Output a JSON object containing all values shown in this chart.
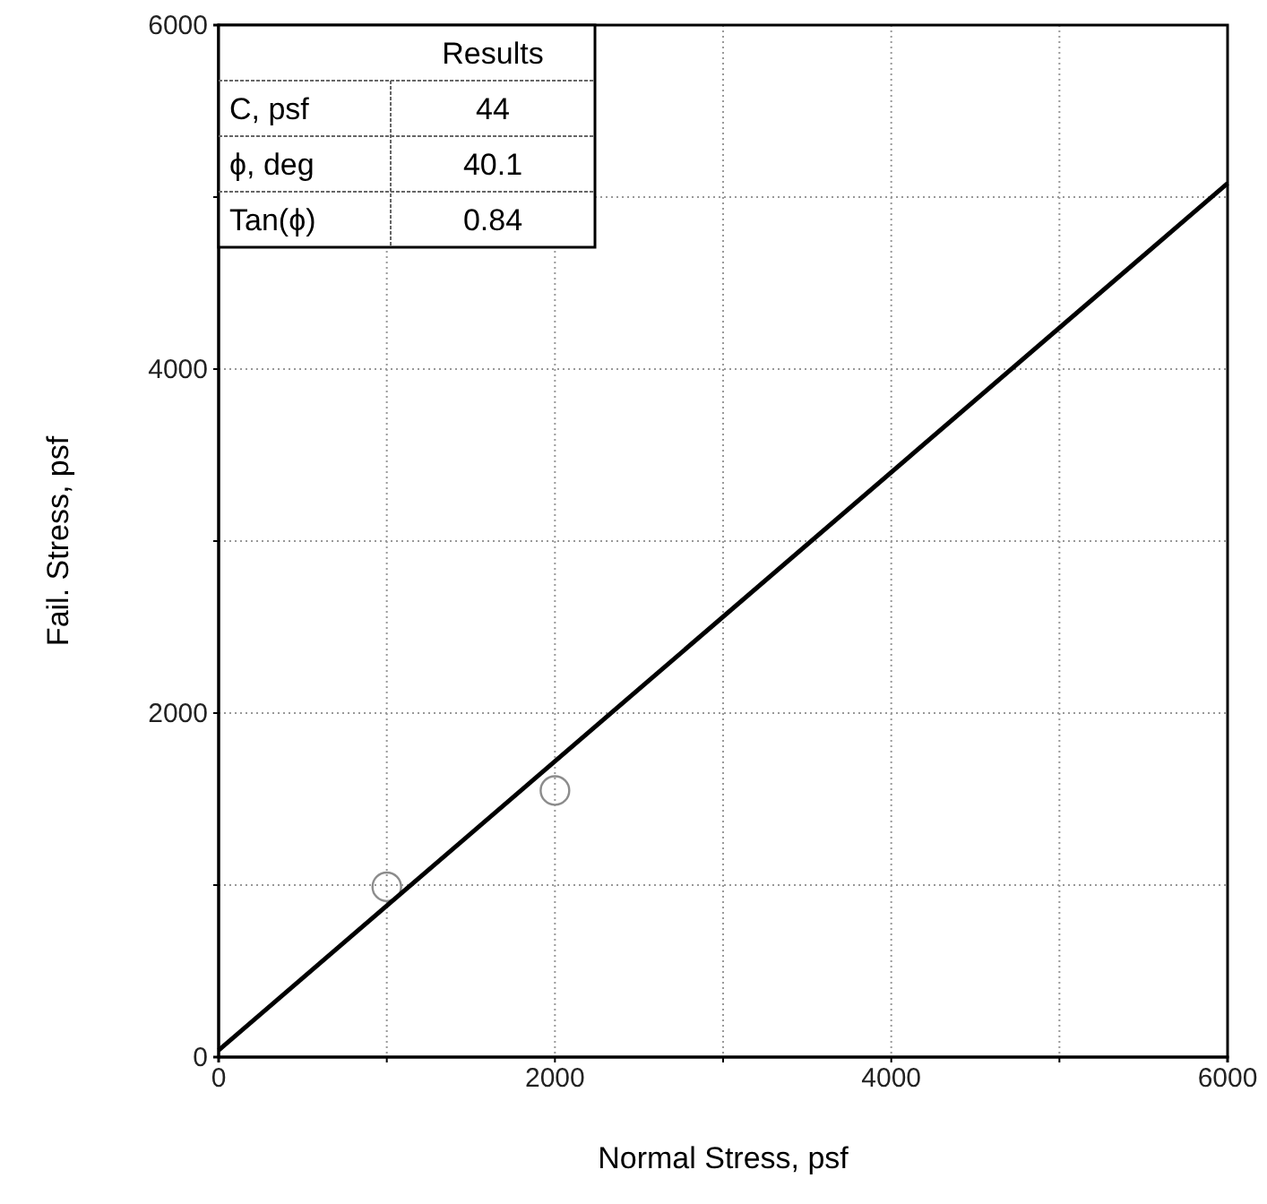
{
  "chart_data": {
    "type": "scatter",
    "xlabel": "Normal Stress, psf",
    "ylabel": "Fail. Stress, psf",
    "xlim": [
      0,
      6000
    ],
    "ylim": [
      0,
      6000
    ],
    "xticks": [
      0,
      {
        "value": 1000,
        "label": null
      },
      2000,
      {
        "value": 3000,
        "label": null
      },
      4000,
      {
        "value": 5000,
        "label": null
      },
      6000
    ],
    "yticks": [
      0,
      {
        "value": 1000,
        "label": null
      },
      2000,
      {
        "value": 3000,
        "label": null
      },
      4000,
      {
        "value": 5000,
        "label": null
      },
      6000
    ],
    "grid": true,
    "marker": "circle",
    "series": [
      {
        "color": "#8c8c8c",
        "x": [
          1000,
          2000
        ],
        "values": [
          990,
          1550
        ]
      },
      {
        "type": "line",
        "color": "#000000",
        "x": [
          0,
          6000
        ],
        "values": [
          40,
          5080
        ],
        "marker": "none",
        "line_style": "solid"
      }
    ],
    "annotations": [
      "Results",
      "C, psf",
      "44",
      "ϕ, deg",
      "40.1",
      "Tan(ϕ)",
      "0.84"
    ]
  }
}
